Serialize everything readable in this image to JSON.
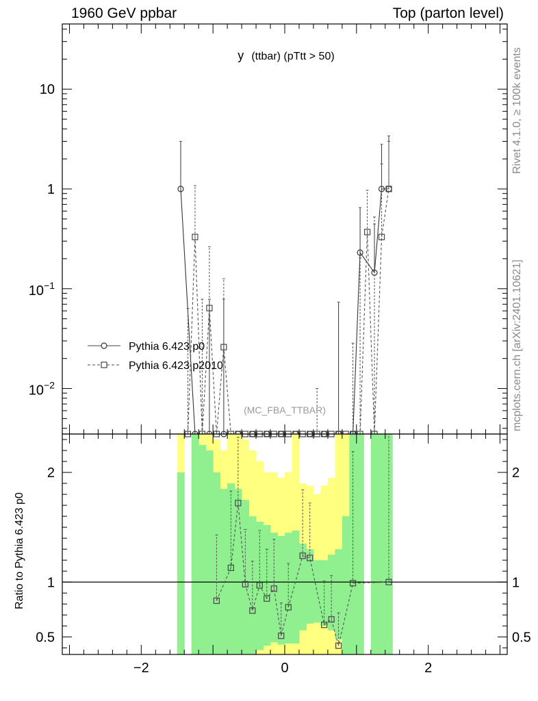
{
  "header": {
    "left": "1960 GeV ppbar",
    "right": "Top (parton level)"
  },
  "side_labels": {
    "top": "Rivet 4.1.0, ≥ 100k events",
    "bottom": "mcplots.cern.ch [arXiv:2401.10621]"
  },
  "chart_data": [
    {
      "type": "line",
      "panel": "main",
      "title_main": "y",
      "title_rest": "(ttbar) (pTtt > 50)",
      "watermark": "(MC_FBA_TTBAR)",
      "yscale": "log",
      "xlim": [
        -3.1,
        3.1
      ],
      "ylim": [
        0.0035,
        45
      ],
      "y_ticks": [
        {
          "v": 10,
          "m": "10",
          "e": ""
        },
        {
          "v": 1,
          "m": "1",
          "e": ""
        },
        {
          "v": 0.1,
          "m": "10",
          "e": "−1"
        },
        {
          "v": 0.01,
          "m": "10",
          "e": "−2"
        }
      ],
      "legend_position": "left-middle",
      "series": [
        {
          "name": "Pythia 6.423 p0",
          "style": "solid",
          "marker": "circle",
          "x": [
            -1.45,
            -1.25,
            -1.05,
            -0.85,
            -0.65,
            -0.45,
            -0.25,
            -0.05,
            0.15,
            0.35,
            0.55,
            0.75,
            0.95,
            1.05,
            1.25,
            1.35,
            1.45
          ],
          "y": [
            1.0,
            0.0035,
            0.0035,
            0.0035,
            0.0035,
            0.0035,
            0.0035,
            0.0035,
            0.0035,
            0.0035,
            0.0035,
            0.0035,
            0.0035,
            0.23,
            0.145,
            1.0,
            1.0
          ],
          "yerr": [
            2.0,
            null,
            0.075,
            0.075,
            null,
            null,
            null,
            null,
            null,
            null,
            null,
            0.07,
            null,
            0.42,
            0.3,
            1.8,
            2.4
          ]
        },
        {
          "name": "Pythia 6.423 p2010",
          "style": "dashed",
          "marker": "square",
          "x": [
            -1.35,
            -1.25,
            -1.15,
            -1.05,
            -0.95,
            -0.85,
            -0.75,
            -0.65,
            -0.55,
            -0.45,
            -0.35,
            -0.25,
            -0.15,
            -0.05,
            0.05,
            0.15,
            0.25,
            0.35,
            0.45,
            0.55,
            0.65,
            0.75,
            0.85,
            0.95,
            1.05,
            1.15,
            1.25,
            1.35,
            1.45
          ],
          "y": [
            0.0035,
            0.33,
            0.0035,
            0.064,
            0.0035,
            0.026,
            0.0035,
            0.0035,
            0.0035,
            0.0035,
            0.0035,
            0.0035,
            0.0035,
            0.0035,
            0.0035,
            0.0035,
            0.0035,
            0.0035,
            0.0035,
            0.0035,
            0.0035,
            0.0035,
            0.0035,
            0.0035,
            0.0035,
            0.37,
            0.0035,
            0.33,
            1.0
          ],
          "yerr": [
            0.06,
            0.75,
            0.075,
            0.2,
            null,
            0.1,
            null,
            null,
            null,
            null,
            null,
            null,
            null,
            null,
            null,
            null,
            null,
            null,
            0.0065,
            null,
            null,
            null,
            null,
            0.025,
            0.2,
            0.6,
            0.52,
            1.45,
            2.0
          ]
        }
      ]
    },
    {
      "type": "line",
      "panel": "ratio",
      "ylabel": "Ratio to Pythia 6.423 p0",
      "xlim": [
        -3.1,
        3.1
      ],
      "ylim": [
        0.34,
        2.35
      ],
      "x_ticks": [
        -2,
        0,
        2
      ],
      "x_tick_labels": [
        "−2",
        "0",
        "2"
      ],
      "y_ticks": [
        0.5,
        1,
        2
      ],
      "y_tick_labels": [
        "0.5",
        "1",
        "2"
      ],
      "reference_line": 1,
      "band_edges": [
        -1.5,
        -1.4,
        -1.3,
        -1.2,
        -1.1,
        -1.0,
        -0.9,
        -0.8,
        -0.7,
        -0.6,
        -0.5,
        -0.4,
        -0.3,
        -0.2,
        -0.1,
        0.0,
        0.1,
        0.2,
        0.3,
        0.4,
        0.5,
        0.6,
        0.7,
        0.8,
        0.9,
        1.0,
        1.1,
        1.2,
        1.3,
        1.4,
        1.5
      ],
      "band_1sigma": {
        "color": "#90f090",
        "lo": [
          0.34,
          null,
          0.34,
          0.34,
          0.34,
          0.34,
          0.34,
          0.34,
          0.34,
          0.34,
          0.34,
          0.38,
          0.42,
          0.45,
          0.43,
          0.44,
          0.44,
          0.56,
          0.62,
          0.63,
          0.6,
          0.56,
          0.48,
          0.34,
          0.34,
          0.34,
          0.34,
          0.34,
          0.34,
          0.34
        ],
        "hi": [
          2.0,
          null,
          2.35,
          2.25,
          2.2,
          2.0,
          1.85,
          1.9,
          1.85,
          1.75,
          1.6,
          1.55,
          1.52,
          1.45,
          1.42,
          1.45,
          1.47,
          1.35,
          1.3,
          1.2,
          1.2,
          1.25,
          1.3,
          1.6,
          2.35,
          2.35,
          null,
          2.35,
          2.35,
          2.35
        ]
      },
      "band_2sigma": {
        "color": "#ffff80",
        "lo": [
          0.34,
          null,
          0.34,
          0.34,
          0.34,
          0.34,
          0.34,
          0.34,
          0.34,
          0.34,
          0.34,
          0.34,
          0.34,
          0.34,
          0.34,
          0.34,
          0.34,
          0.34,
          0.34,
          0.34,
          0.34,
          0.34,
          0.34,
          0.34,
          0.34,
          0.34,
          0.34,
          0.34,
          0.34,
          0.34
        ],
        "hi": [
          2.35,
          null,
          2.35,
          2.35,
          2.35,
          2.3,
          2.2,
          2.35,
          2.35,
          2.3,
          2.2,
          2.1,
          2.0,
          2.0,
          1.95,
          2.0,
          2.35,
          1.9,
          1.88,
          1.8,
          1.88,
          1.95,
          2.35,
          2.35,
          2.35,
          2.35,
          null,
          2.35,
          2.35,
          2.35
        ]
      },
      "series": [
        {
          "name": "Pythia 6.423 p2010",
          "style": "dashed",
          "marker": "square",
          "x": [
            -0.95,
            -0.75,
            -0.65,
            -0.55,
            -0.45,
            -0.35,
            -0.25,
            -0.15,
            -0.05,
            0.05,
            0.25,
            0.35,
            0.55,
            0.65,
            0.75,
            0.95,
            1.45
          ],
          "y": [
            0.83,
            1.13,
            1.72,
            0.98,
            0.74,
            0.97,
            0.85,
            0.94,
            0.51,
            0.77,
            1.24,
            1.22,
            0.61,
            0.66,
            0.42,
            0.99,
            1.0
          ],
          "yerr": [
            0.6,
            0.7,
            0.6,
            0.5,
            0.45,
            0.5,
            0.45,
            0.45,
            0.3,
            0.4,
            0.6,
            0.5,
            0.4,
            0.4,
            0.3,
            1.2,
            1.4
          ]
        }
      ]
    }
  ]
}
